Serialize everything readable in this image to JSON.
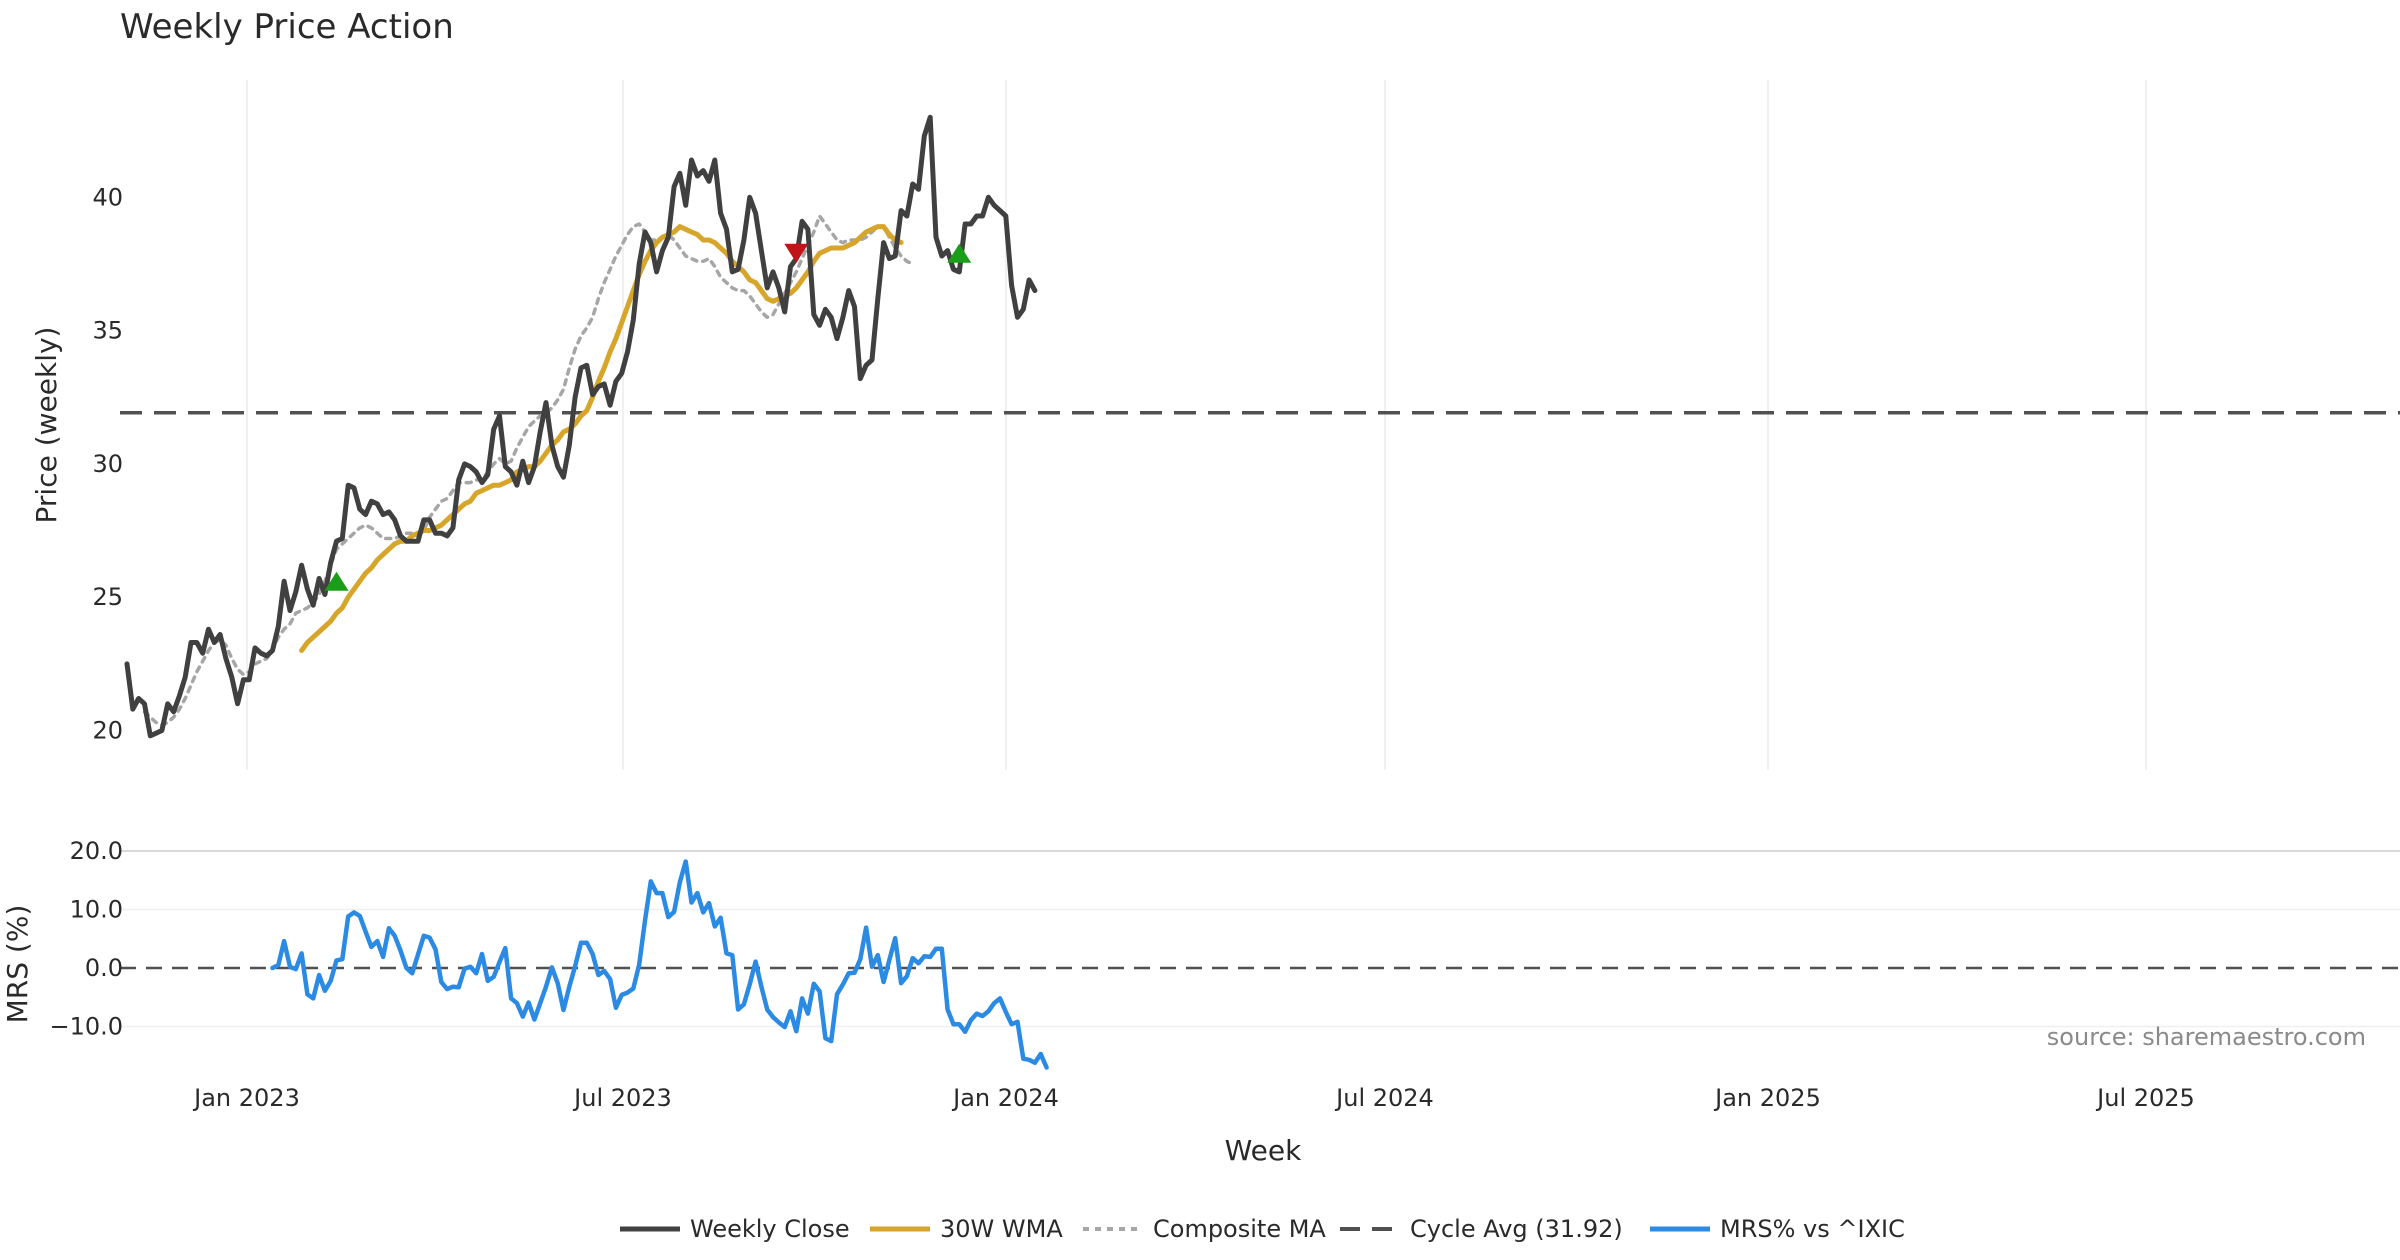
{
  "chart_data": [
    {
      "type": "line",
      "title": "Weekly Price Action",
      "ylabel": "Price (weekly)",
      "ylim": [
        19,
        44.8
      ],
      "yticks": [
        "20",
        "25",
        "30",
        "35",
        "40"
      ],
      "xlabel": "Week",
      "xticks": [
        "Jan 2023",
        "Jul 2023",
        "Jan 2024",
        "Jul 2024",
        "Jan 2025",
        "Jul 2025"
      ],
      "grid": "vertical",
      "series": [
        {
          "name": "Weekly Close",
          "color": "#404040",
          "style": "solid",
          "values": [
            22.5,
            20.8,
            21.2,
            21.0,
            19.8,
            19.9,
            20.0,
            21.0,
            20.7,
            21.3,
            22.0,
            23.3,
            23.3,
            22.9,
            23.8,
            23.3,
            23.6,
            22.7,
            22.0,
            21.0,
            21.9,
            21.9,
            23.1,
            22.9,
            22.8,
            23.0,
            23.9,
            25.6,
            24.5,
            25.2,
            26.2,
            25.3,
            24.7,
            25.7,
            25.1,
            26.3,
            27.1,
            27.2,
            29.2,
            29.1,
            28.3,
            28.1,
            28.6,
            28.5,
            28.1,
            28.2,
            27.9,
            27.3,
            27.1,
            27.1,
            27.1,
            27.9,
            27.9,
            27.4,
            27.4,
            27.3,
            27.6,
            29.4,
            30.0,
            29.9,
            29.7,
            29.3,
            29.6,
            31.3,
            31.8,
            29.9,
            29.7,
            29.2,
            30.1,
            29.3,
            29.9,
            31.2,
            32.3,
            30.7,
            29.9,
            29.5,
            30.7,
            32.5,
            33.6,
            33.7,
            32.6,
            32.9,
            33.0,
            32.2,
            33.1,
            33.4,
            34.2,
            35.4,
            37.5,
            38.7,
            38.3,
            37.2,
            38.0,
            38.5,
            40.4,
            40.9,
            39.7,
            41.4,
            40.8,
            41.0,
            40.6,
            41.4,
            39.4,
            38.8,
            37.2,
            37.3,
            38.4,
            40.0,
            39.4,
            38.0,
            36.6,
            37.2,
            36.6,
            35.7,
            37.4,
            37.7,
            39.1,
            38.8,
            35.6,
            35.2,
            35.8,
            35.5,
            34.7,
            35.5,
            36.5,
            35.9,
            33.2,
            33.7,
            33.9,
            36.2,
            38.3,
            37.7,
            37.8,
            39.5,
            39.3,
            40.5,
            40.3,
            42.3,
            43.0,
            38.5,
            37.8,
            38.0,
            37.3,
            37.2,
            39.0,
            39.0,
            39.3,
            39.3,
            40.0,
            39.7,
            39.5,
            39.3,
            36.7,
            35.5,
            35.8,
            36.9,
            36.5
          ]
        },
        {
          "name": "30W WMA",
          "color": "#d6a52a",
          "style": "solid",
          "start_index": 30,
          "values": [
            23.0,
            23.3,
            23.5,
            23.7,
            23.9,
            24.1,
            24.4,
            24.6,
            25.0,
            25.3,
            25.6,
            25.9,
            26.1,
            26.4,
            26.6,
            26.8,
            27.0,
            27.1,
            27.1,
            27.3,
            27.4,
            27.5,
            27.5,
            27.6,
            27.7,
            27.9,
            28.1,
            28.3,
            28.5,
            28.6,
            28.9,
            29.0,
            29.1,
            29.2,
            29.2,
            29.3,
            29.4,
            29.7,
            29.8,
            29.9,
            29.9,
            30.1,
            30.4,
            30.7,
            30.9,
            31.2,
            31.3,
            31.5,
            31.8,
            32.0,
            32.5,
            33.1,
            33.6,
            34.2,
            34.7,
            35.3,
            35.9,
            36.5,
            37.1,
            37.6,
            38.0,
            38.3,
            38.5,
            38.6,
            38.7,
            38.9,
            38.8,
            38.7,
            38.6,
            38.4,
            38.4,
            38.3,
            38.1,
            37.9,
            37.6,
            37.4,
            37.2,
            36.9,
            36.8,
            36.5,
            36.2,
            36.1,
            36.2,
            36.3,
            36.4,
            36.6,
            36.9,
            37.2,
            37.6,
            37.9,
            38.0,
            38.1,
            38.1,
            38.1,
            38.2,
            38.3,
            38.5,
            38.7,
            38.8,
            38.9,
            38.9,
            38.6,
            38.4,
            38.3
          ]
        },
        {
          "name": "Composite MA",
          "color": "#a6a6a6",
          "style": "dotted",
          "start_index": 3,
          "values": [
            20.7,
            20.5,
            20.3,
            20.2,
            20.3,
            20.5,
            20.8,
            21.2,
            21.7,
            22.2,
            22.6,
            23.0,
            23.3,
            23.4,
            23.2,
            22.7,
            22.3,
            22.1,
            22.2,
            22.5,
            22.6,
            22.7,
            23.0,
            23.5,
            23.8,
            24.0,
            24.4,
            24.5,
            24.6,
            24.8,
            25.1,
            25.6,
            26.2,
            26.8,
            27.0,
            27.2,
            27.4,
            27.6,
            27.7,
            27.6,
            27.4,
            27.2,
            27.2,
            27.2,
            27.3,
            27.4,
            27.4,
            27.3,
            27.5,
            28.0,
            28.3,
            28.6,
            28.7,
            29.0,
            29.3,
            29.3,
            29.3,
            29.4,
            29.4,
            29.7,
            30.0,
            30.2,
            30.0,
            30.1,
            30.6,
            31.0,
            31.4,
            31.6,
            31.8,
            31.9,
            32.1,
            32.4,
            32.8,
            33.6,
            34.3,
            34.8,
            35.1,
            35.5,
            36.2,
            36.8,
            37.3,
            37.8,
            38.2,
            38.6,
            38.9,
            39.0,
            38.7,
            38.4,
            38.4,
            38.5,
            38.6,
            38.4,
            38.1,
            37.8,
            37.7,
            37.6,
            37.6,
            37.7,
            37.4,
            37.0,
            36.8,
            36.6,
            36.5,
            36.5,
            36.3,
            36.0,
            35.7,
            35.5,
            35.6,
            36.0,
            36.4,
            36.8,
            37.2,
            37.7,
            38.2,
            38.7,
            39.3,
            39.0,
            38.7,
            38.4,
            38.3,
            38.4,
            38.4,
            38.4,
            38.5,
            38.7,
            38.9,
            38.9,
            38.5,
            38.1,
            37.8,
            37.6,
            37.5
          ]
        }
      ],
      "reference_line": {
        "name": "Cycle Avg (31.92)",
        "value": 31.92,
        "color": "#505050",
        "style": "dashed"
      },
      "markers": [
        {
          "type": "buy",
          "shape": "triangle-up",
          "color": "#1a9e1a",
          "index": 36,
          "value": 25.6
        },
        {
          "type": "sell",
          "shape": "triangle-down",
          "color": "#c0141a",
          "index": 115,
          "value": 37.9
        },
        {
          "type": "buy",
          "shape": "triangle-up",
          "color": "#1a9e1a",
          "index": 143,
          "value": 37.9
        }
      ]
    },
    {
      "type": "line",
      "ylabel": "MRS (%)",
      "ylim": [
        -17,
        21
      ],
      "yticks": [
        "20.0",
        "10.0",
        "0.0",
        "−10.0"
      ],
      "reference_line": {
        "value": 0,
        "color": "#505050",
        "style": "dashed"
      },
      "series": [
        {
          "name": "MRS% vs ^IXIC",
          "color": "#2b8ae3",
          "style": "solid",
          "start_index": 25,
          "values": [
            0.0,
            0.5,
            4.6,
            0.2,
            -0.2,
            2.5,
            -4.5,
            -5.2,
            -1.2,
            -3.9,
            -2.2,
            1.3,
            1.5,
            8.8,
            9.5,
            8.9,
            6.2,
            3.6,
            4.6,
            1.9,
            6.8,
            5.5,
            3.0,
            0.0,
            -0.9,
            2.3,
            5.5,
            5.2,
            3.2,
            -2.4,
            -3.6,
            -3.2,
            -3.3,
            -0.1,
            0.2,
            -0.9,
            2.4,
            -2.2,
            -1.5,
            1.0,
            3.4,
            -5.2,
            -6.0,
            -8.3,
            -5.9,
            -8.8,
            -6.0,
            -3.2,
            0.1,
            -2.6,
            -7.2,
            -3.2,
            0.3,
            4.3,
            4.3,
            2.4,
            -1.2,
            -0.5,
            -1.9,
            -6.8,
            -4.6,
            -4.2,
            -3.5,
            0.6,
            8.1,
            14.8,
            12.8,
            12.8,
            8.7,
            9.6,
            14.7,
            18.2,
            11.2,
            12.8,
            9.5,
            11.1,
            7.1,
            8.6,
            2.5,
            2.2,
            -7.1,
            -6.2,
            -2.8,
            1.1,
            -3.2,
            -7.1,
            -8.4,
            -9.3,
            -10.1,
            -7.4,
            -10.8,
            -5.2,
            -7.8,
            -2.7,
            -4.0,
            -12.0,
            -12.5,
            -4.5,
            -2.8,
            -0.9,
            -0.8,
            1.5,
            6.9,
            0.2,
            2.2,
            -2.4,
            1.4,
            5.1,
            -2.6,
            -1.4,
            1.7,
            0.8,
            2.0,
            1.9,
            3.3,
            3.3,
            -7.1,
            -9.6,
            -9.6,
            -10.9,
            -8.9,
            -7.8,
            -8.2,
            -7.4,
            -6.0,
            -5.2,
            -7.5,
            -9.6,
            -9.2,
            -15.5,
            -15.7,
            -16.2,
            -14.7,
            -17.0
          ]
        }
      ]
    }
  ],
  "legend": {
    "position": "bottom-center",
    "entries": [
      {
        "label": "Weekly Close",
        "color": "#404040",
        "style": "solid"
      },
      {
        "label": "30W WMA",
        "color": "#d6a52a",
        "style": "solid"
      },
      {
        "label": "Composite MA",
        "color": "#a6a6a6",
        "style": "dotted"
      },
      {
        "label": "Cycle Avg (31.92)",
        "color": "#505050",
        "style": "dashed"
      },
      {
        "label": "MRS% vs ^IXIC",
        "color": "#2b8ae3",
        "style": "solid"
      }
    ]
  },
  "source": "source: sharemaestro.com"
}
